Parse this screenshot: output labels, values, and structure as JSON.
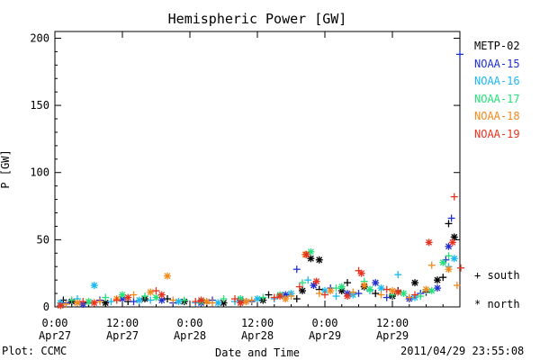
{
  "chart_data": {
    "type": "scatter",
    "title": "Hemispheric Power [GW]",
    "xlabel": "Date and Time",
    "ylabel": "P [GW]",
    "x_unit": "hours from 2011-04-27 00:00",
    "xlim": [
      0,
      72
    ],
    "ylim": [
      0,
      205
    ],
    "yticks": [
      0,
      50,
      100,
      150,
      200
    ],
    "xticks": [
      {
        "x": 0,
        "time": "0:00",
        "date": "Apr27"
      },
      {
        "x": 12,
        "time": "12:00",
        "date": "Apr27"
      },
      {
        "x": 24,
        "time": "0:00",
        "date": "Apr28"
      },
      {
        "x": 36,
        "time": "12:00",
        "date": "Apr28"
      },
      {
        "x": 48,
        "time": "0:00",
        "date": "Apr29"
      },
      {
        "x": 60,
        "time": "12:00",
        "date": "Apr29"
      }
    ],
    "grid": false,
    "legend_position": "right",
    "markers": {
      "south": "+",
      "north": "*"
    },
    "series": [
      {
        "name": "METP-02",
        "color": "#000000",
        "south": [
          [
            1.5,
            5
          ],
          [
            6,
            3
          ],
          [
            13,
            4
          ],
          [
            20,
            6
          ],
          [
            27,
            3
          ],
          [
            34,
            4
          ],
          [
            38,
            9
          ],
          [
            43,
            6
          ],
          [
            47,
            13
          ],
          [
            52,
            18
          ],
          [
            57,
            10
          ],
          [
            61,
            12
          ],
          [
            66,
            11
          ],
          [
            69,
            22
          ],
          [
            70,
            62
          ]
        ],
        "north": [
          [
            3,
            4
          ],
          [
            9,
            3
          ],
          [
            16,
            6
          ],
          [
            23,
            4
          ],
          [
            30,
            3
          ],
          [
            37,
            5
          ],
          [
            44,
            12
          ],
          [
            45.5,
            36
          ],
          [
            47,
            35
          ],
          [
            51,
            12
          ],
          [
            55,
            15
          ],
          [
            60,
            8
          ],
          [
            64,
            18
          ],
          [
            68,
            20
          ],
          [
            71,
            52
          ]
        ]
      },
      {
        "name": "NOAA-15",
        "color": "#1f2fd0",
        "south": [
          [
            2,
            3
          ],
          [
            8,
            5
          ],
          [
            14,
            4
          ],
          [
            21,
            3
          ],
          [
            28,
            5
          ],
          [
            35,
            4
          ],
          [
            43,
            28
          ],
          [
            49,
            14
          ],
          [
            54,
            10
          ],
          [
            59,
            7
          ],
          [
            65,
            10
          ],
          [
            69.5,
            35
          ],
          [
            70.5,
            66
          ],
          [
            72,
            188
          ]
        ],
        "north": [
          [
            5,
            2
          ],
          [
            12,
            6
          ],
          [
            19,
            5
          ],
          [
            26,
            3
          ],
          [
            33,
            5
          ],
          [
            41,
            9
          ],
          [
            46,
            16
          ],
          [
            52,
            10
          ],
          [
            57,
            18
          ],
          [
            63,
            6
          ],
          [
            68,
            14
          ],
          [
            70,
            45
          ]
        ]
      },
      {
        "name": "NOAA-16",
        "color": "#1ab8f0",
        "south": [
          [
            4,
            6
          ],
          [
            10,
            4
          ],
          [
            17,
            5
          ],
          [
            25,
            3
          ],
          [
            32,
            4
          ],
          [
            39,
            6
          ],
          [
            45,
            20
          ],
          [
            50,
            8
          ],
          [
            56,
            12
          ],
          [
            61,
            24
          ],
          [
            66,
            12
          ],
          [
            70,
            30
          ]
        ],
        "north": [
          [
            1,
            3
          ],
          [
            7,
            16
          ],
          [
            15,
            5
          ],
          [
            22,
            4
          ],
          [
            29,
            3
          ],
          [
            36,
            6
          ],
          [
            42,
            10
          ],
          [
            48,
            12
          ],
          [
            53,
            9
          ],
          [
            58,
            14
          ],
          [
            64,
            7
          ],
          [
            71,
            36
          ]
        ]
      },
      {
        "name": "NOAA-17",
        "color": "#26e07a",
        "south": [
          [
            3,
            5
          ],
          [
            9,
            7
          ],
          [
            16,
            8
          ],
          [
            23,
            5
          ],
          [
            30,
            6
          ],
          [
            37,
            7
          ],
          [
            44,
            18
          ],
          [
            50,
            14
          ],
          [
            55,
            19
          ],
          [
            60,
            9
          ],
          [
            65,
            8
          ],
          [
            70,
            38
          ]
        ],
        "north": [
          [
            6,
            4
          ],
          [
            12,
            9
          ],
          [
            18,
            7
          ],
          [
            26,
            4
          ],
          [
            33,
            6
          ],
          [
            40,
            9
          ],
          [
            45.5,
            41
          ],
          [
            51,
            15
          ],
          [
            56,
            13
          ],
          [
            62,
            10
          ],
          [
            67,
            12
          ],
          [
            69,
            33
          ]
        ]
      },
      {
        "name": "NOAA-18",
        "color": "#f08a1c",
        "south": [
          [
            2,
            2
          ],
          [
            8,
            4
          ],
          [
            14,
            9
          ],
          [
            21,
            5
          ],
          [
            28,
            3
          ],
          [
            35,
            5
          ],
          [
            42,
            8
          ],
          [
            47,
            10
          ],
          [
            53,
            11
          ],
          [
            58,
            9
          ],
          [
            63,
            7
          ],
          [
            67,
            31
          ],
          [
            71.5,
            16
          ]
        ],
        "north": [
          [
            4,
            3
          ],
          [
            11,
            6
          ],
          [
            17,
            11
          ],
          [
            20,
            23
          ],
          [
            27,
            4
          ],
          [
            34,
            4
          ],
          [
            41,
            6
          ],
          [
            44.5,
            39
          ],
          [
            49,
            12
          ],
          [
            55,
            16
          ],
          [
            60,
            12
          ],
          [
            66,
            13
          ],
          [
            70,
            28
          ]
        ]
      },
      {
        "name": "NOAA-19",
        "color": "#e8321e",
        "south": [
          [
            5,
            4
          ],
          [
            11,
            5
          ],
          [
            18,
            12
          ],
          [
            25,
            4
          ],
          [
            32,
            6
          ],
          [
            39,
            7
          ],
          [
            43.5,
            15
          ],
          [
            48,
            9
          ],
          [
            54,
            27
          ],
          [
            59,
            13
          ],
          [
            64,
            9
          ],
          [
            71,
            82
          ],
          [
            72.5,
            29
          ]
        ],
        "north": [
          [
            1,
            1
          ],
          [
            7,
            3
          ],
          [
            13,
            7
          ],
          [
            19,
            9
          ],
          [
            26,
            5
          ],
          [
            33,
            3
          ],
          [
            40,
            8
          ],
          [
            44.7,
            39
          ],
          [
            46.5,
            19
          ],
          [
            52,
            8
          ],
          [
            54.5,
            25
          ],
          [
            61,
            11
          ],
          [
            66.5,
            48
          ],
          [
            70.7,
            48
          ]
        ]
      }
    ]
  },
  "legend_key": {
    "south": "south",
    "north": "north"
  },
  "footer": {
    "left": "Plot: CCMC",
    "right": "2011/04/29 23:55:08"
  }
}
